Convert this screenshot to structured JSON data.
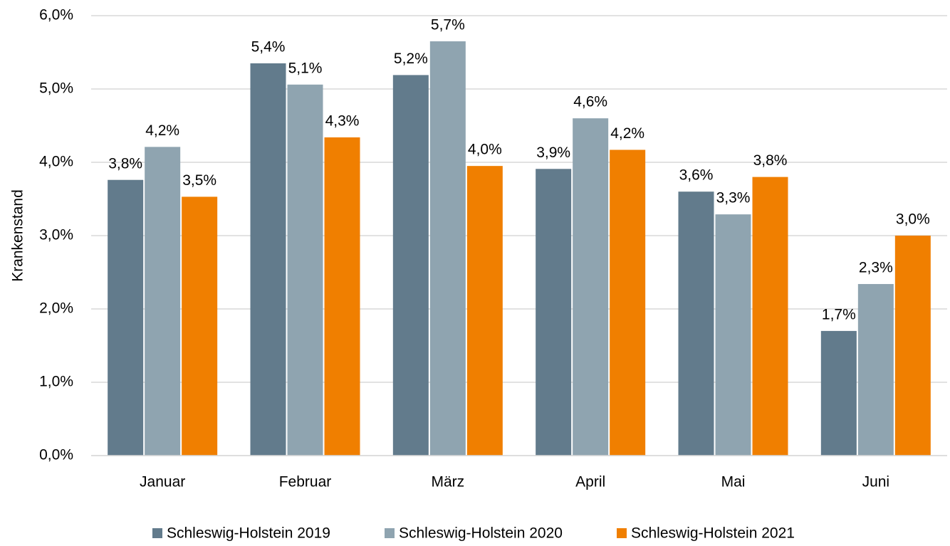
{
  "chart_data": {
    "type": "bar",
    "ylabel": "Krankenstand",
    "categories": [
      "Januar",
      "Februar",
      "März",
      "April",
      "Mai",
      "Juni"
    ],
    "series": [
      {
        "name": "Schleswig-Holstein 2019",
        "color": "#627b8c",
        "values": [
          3.76,
          5.35,
          5.19,
          3.91,
          3.6,
          1.7
        ],
        "value_labels": [
          "3,8%",
          "5,4%",
          "5,2%",
          "3,9%",
          "3,6%",
          "1,7%"
        ]
      },
      {
        "name": "Schleswig-Holstein 2020",
        "color": "#8fa4b0",
        "values": [
          4.21,
          5.06,
          5.65,
          4.6,
          3.29,
          2.34
        ],
        "value_labels": [
          "4,2%",
          "5,1%",
          "5,7%",
          "4,6%",
          "3,3%",
          "2,3%"
        ]
      },
      {
        "name": "Schleswig-Holstein 2021",
        "color": "#f07f00",
        "values": [
          3.53,
          4.34,
          3.95,
          4.17,
          3.8,
          3.0
        ],
        "value_labels": [
          "3,5%",
          "4,3%",
          "4,0%",
          "4,2%",
          "3,8%",
          "3,0%"
        ]
      }
    ],
    "ylim": [
      0,
      6
    ],
    "yticks": [
      {
        "value": 0,
        "label": "0,0%"
      },
      {
        "value": 1,
        "label": "1,0%"
      },
      {
        "value": 2,
        "label": "2,0%"
      },
      {
        "value": 3,
        "label": "3,0%"
      },
      {
        "value": 4,
        "label": "4,0%"
      },
      {
        "value": 5,
        "label": "5,0%"
      },
      {
        "value": 6,
        "label": "6,0%"
      }
    ],
    "grid": true,
    "legend": "bottom"
  }
}
